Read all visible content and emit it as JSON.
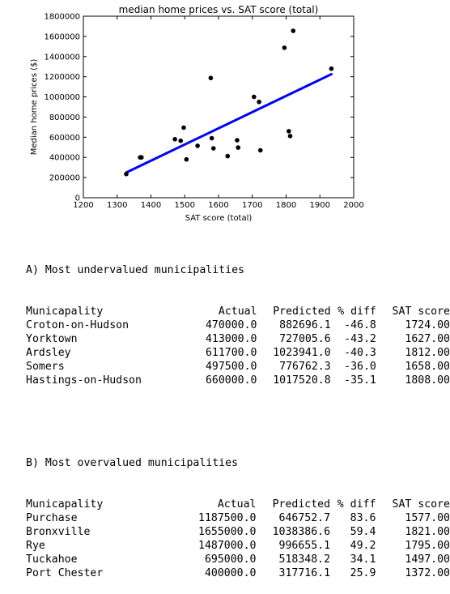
{
  "chart_data": {
    "type": "scatter",
    "title": "median home prices vs. SAT score (total)",
    "xlabel": "SAT score (total)",
    "ylabel": "Median home prices ($)",
    "xlim": [
      1200,
      2000
    ],
    "ylim": [
      0,
      1800000
    ],
    "xticks": [
      "1200",
      "1300",
      "1400",
      "1500",
      "1600",
      "1700",
      "1800",
      "1900",
      "2000"
    ],
    "yticks": [
      "0",
      "200000",
      "400000",
      "600000",
      "800000",
      "1000000",
      "1200000",
      "1400000",
      "1600000",
      "1800000"
    ],
    "xtick_values": [
      1200,
      1300,
      1400,
      1500,
      1600,
      1700,
      1800,
      1900,
      2000
    ],
    "ytick_values": [
      0,
      200000,
      400000,
      600000,
      800000,
      1000000,
      1200000,
      1400000,
      1600000,
      1800000
    ],
    "points": [
      [
        1327,
        235000
      ],
      [
        1368,
        400000
      ],
      [
        1372,
        400000
      ],
      [
        1471,
        580000
      ],
      [
        1488,
        565000
      ],
      [
        1497,
        695000
      ],
      [
        1505,
        380000
      ],
      [
        1538,
        515000
      ],
      [
        1577,
        1187500
      ],
      [
        1580,
        590000
      ],
      [
        1585,
        490000
      ],
      [
        1627,
        413000
      ],
      [
        1655,
        570000
      ],
      [
        1658,
        497500
      ],
      [
        1705,
        1000000
      ],
      [
        1720,
        950000
      ],
      [
        1724,
        470000
      ],
      [
        1795,
        1487000
      ],
      [
        1808,
        660000
      ],
      [
        1812,
        611700
      ],
      [
        1821,
        1655000
      ],
      [
        1934,
        1280000
      ]
    ],
    "fit_line": {
      "x": [
        1327,
        1934
      ],
      "y": [
        250000,
        1225000
      ]
    },
    "point_color": "#000000",
    "line_color": "#0000ff",
    "grid": false
  },
  "undervalued": {
    "title": "A) Most undervalued municipalities",
    "headers": [
      "Municapality",
      "Actual",
      "Predicted",
      "% diff",
      "SAT score"
    ],
    "rows": [
      [
        "Croton-on-Hudson",
        "470000.0",
        "882696.1",
        "-46.8",
        "1724.00"
      ],
      [
        "Yorktown",
        "413000.0",
        "727005.6",
        "-43.2",
        "1627.00"
      ],
      [
        "Ardsley",
        "611700.0",
        "1023941.0",
        "-40.3",
        "1812.00"
      ],
      [
        "Somers",
        "497500.0",
        "776762.3",
        "-36.0",
        "1658.00"
      ],
      [
        "Hastings-on-Hudson",
        "660000.0",
        "1017520.8",
        "-35.1",
        "1808.00"
      ]
    ]
  },
  "overvalued": {
    "title": "B) Most overvalued municipalities",
    "headers": [
      "Municapality",
      "Actual",
      "Predicted",
      "% diff",
      "SAT score"
    ],
    "rows": [
      [
        "Purchase",
        "1187500.0",
        "646752.7",
        "83.6",
        "1577.00"
      ],
      [
        "Bronxville",
        "1655000.0",
        "1038386.6",
        "59.4",
        "1821.00"
      ],
      [
        "Rye",
        "1487000.0",
        "996655.1",
        "49.2",
        "1795.00"
      ],
      [
        "Tuckahoe",
        "695000.0",
        "518348.2",
        "34.1",
        "1497.00"
      ],
      [
        "Port Chester",
        "400000.0",
        "317716.1",
        "25.9",
        "1372.00"
      ]
    ]
  }
}
